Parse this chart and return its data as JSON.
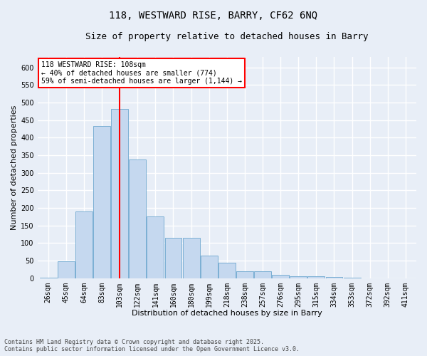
{
  "title1": "118, WESTWARD RISE, BARRY, CF62 6NQ",
  "title2": "Size of property relative to detached houses in Barry",
  "xlabel": "Distribution of detached houses by size in Barry",
  "ylabel": "Number of detached properties",
  "bar_labels": [
    "26sqm",
    "45sqm",
    "64sqm",
    "83sqm",
    "103sqm",
    "122sqm",
    "141sqm",
    "160sqm",
    "180sqm",
    "199sqm",
    "218sqm",
    "238sqm",
    "257sqm",
    "276sqm",
    "295sqm",
    "315sqm",
    "334sqm",
    "353sqm",
    "372sqm",
    "392sqm",
    "411sqm"
  ],
  "bar_heights": [
    2,
    48,
    190,
    433,
    483,
    338,
    175,
    115,
    115,
    65,
    45,
    20,
    20,
    10,
    5,
    5,
    3,
    2,
    0,
    0,
    0
  ],
  "bar_color": "#c5d8ef",
  "bar_edge_color": "#7bafd4",
  "bg_color": "#e8eef7",
  "grid_color": "#ffffff",
  "vline_x_index": 4,
  "vline_color": "red",
  "annotation_title": "118 WESTWARD RISE: 108sqm",
  "annotation_line1": "← 40% of detached houses are smaller (774)",
  "annotation_line2": "59% of semi-detached houses are larger (1,144) →",
  "annotation_box_color": "white",
  "annotation_border_color": "red",
  "footer1": "Contains HM Land Registry data © Crown copyright and database right 2025.",
  "footer2": "Contains public sector information licensed under the Open Government Licence v3.0.",
  "ylim": [
    0,
    630
  ],
  "yticks": [
    0,
    50,
    100,
    150,
    200,
    250,
    300,
    350,
    400,
    450,
    500,
    550,
    600
  ],
  "title1_fontsize": 10,
  "title2_fontsize": 9,
  "tick_fontsize": 7,
  "label_fontsize": 8,
  "footer_fontsize": 6
}
